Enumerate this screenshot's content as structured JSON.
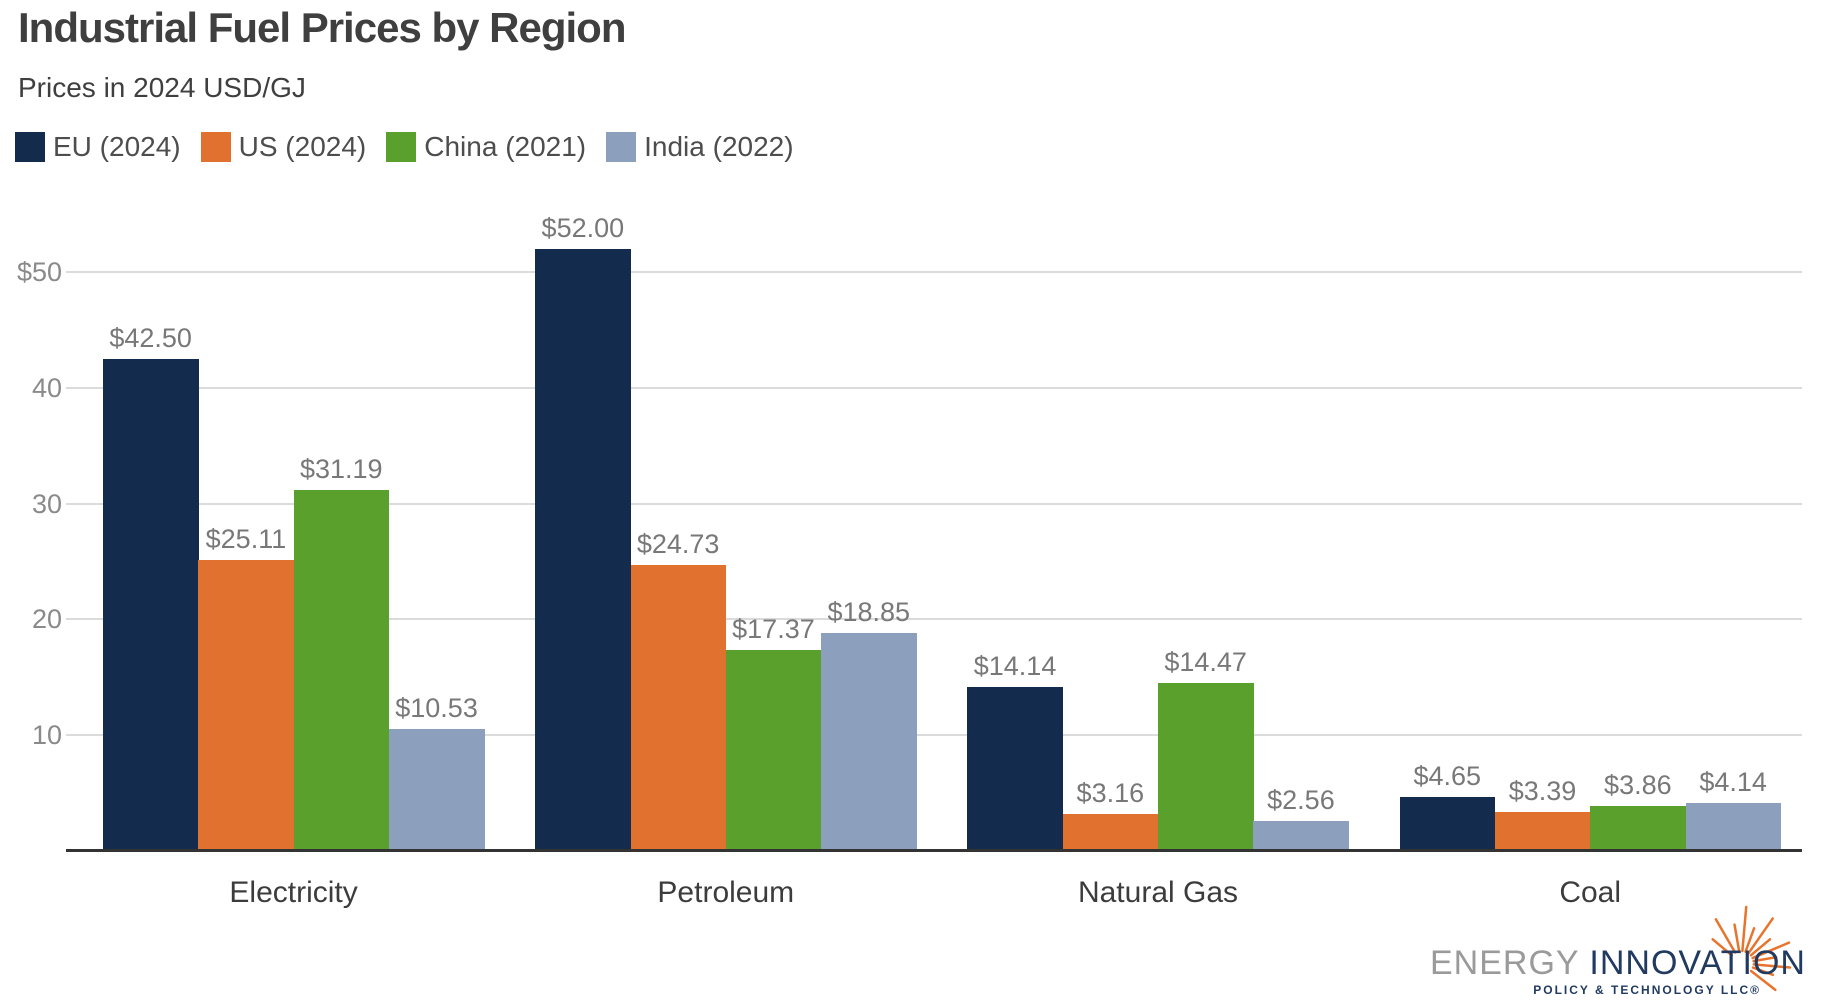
{
  "header": {
    "title": "Industrial Fuel Prices by Region",
    "subtitle": "Prices in 2024 USD/GJ"
  },
  "chart_data": {
    "type": "bar",
    "title": "Industrial Fuel Prices by Region",
    "subtitle": "Prices in 2024 USD/GJ",
    "unit": "2024 USD/GJ",
    "categories": [
      "Electricity",
      "Petroleum",
      "Natural Gas",
      "Coal"
    ],
    "series": [
      {
        "name": "EU (2024)",
        "color": "#132c4e",
        "values": [
          42.5,
          52.0,
          14.14,
          4.65
        ],
        "labels": [
          "$42.50",
          "$52.00",
          "$14.14",
          "$4.65"
        ]
      },
      {
        "name": "US (2024)",
        "color": "#e0712e",
        "values": [
          25.11,
          24.73,
          3.16,
          3.39
        ],
        "labels": [
          "$25.11",
          "$24.73",
          "$3.16",
          "$3.39"
        ]
      },
      {
        "name": "China (2021)",
        "color": "#5aa02c",
        "values": [
          31.19,
          17.37,
          14.47,
          3.86
        ],
        "labels": [
          "$31.19",
          "$17.37",
          "$14.47",
          "$3.86"
        ]
      },
      {
        "name": "India (2022)",
        "color": "#8c9fbd",
        "values": [
          10.53,
          18.85,
          2.56,
          4.14
        ],
        "labels": [
          "$10.53",
          "$18.85",
          "$2.56",
          "$4.14"
        ]
      }
    ],
    "y_axis": {
      "ylim": [
        0,
        55
      ],
      "ticks": [
        {
          "value": 10,
          "label": "10"
        },
        {
          "value": 20,
          "label": "20"
        },
        {
          "value": 30,
          "label": "30"
        },
        {
          "value": 40,
          "label": "40"
        },
        {
          "value": 50,
          "label": "$50"
        }
      ]
    },
    "grid": true,
    "legend_position": "top"
  },
  "colors": {
    "gridline": "#dbdbdb",
    "axis_line": "#333333",
    "value_label": "#787878",
    "tick_label": "#8a8a8a"
  },
  "logo": {
    "name_part1": "ENERGY ",
    "name_part2": "INNOVATION",
    "tagline": "POLICY & TECHNOLOGY LLC®",
    "accent_color": "#e8742c",
    "navy": "#203a60",
    "gray": "#9a9a9a"
  }
}
